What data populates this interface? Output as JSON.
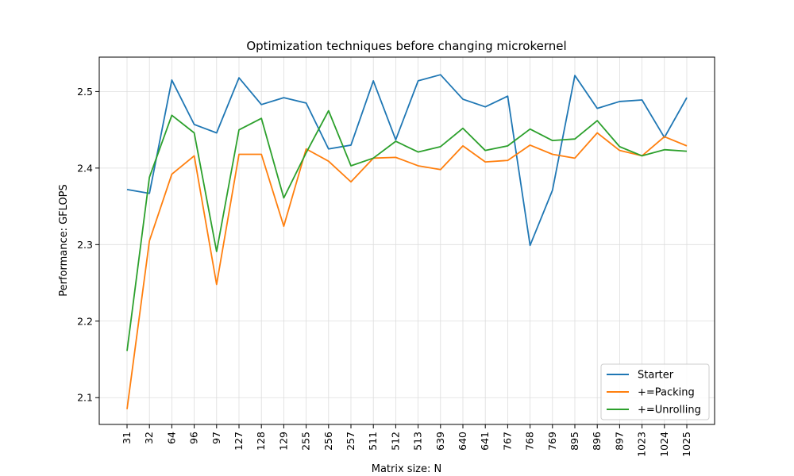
{
  "chart_data": {
    "type": "line",
    "title": "Optimization techniques before changing microkernel",
    "xlabel": "Matrix size: N",
    "ylabel": "Performance: GFLOPS",
    "categories": [
      "31",
      "32",
      "64",
      "96",
      "97",
      "127",
      "128",
      "129",
      "255",
      "256",
      "257",
      "511",
      "512",
      "513",
      "639",
      "640",
      "641",
      "767",
      "768",
      "769",
      "895",
      "896",
      "897",
      "1023",
      "1024",
      "1025"
    ],
    "ylim": [
      2.065,
      2.545
    ],
    "yticks": [
      2.1,
      2.2,
      2.3,
      2.4,
      2.5
    ],
    "ytick_labels": [
      "2.1",
      "2.2",
      "2.3",
      "2.4",
      "2.5"
    ],
    "grid": true,
    "legend_position": "lower-right",
    "series": [
      {
        "name": "Starter",
        "color": "#1f77b4",
        "values": [
          2.372,
          2.367,
          2.515,
          2.457,
          2.446,
          2.518,
          2.483,
          2.492,
          2.485,
          2.425,
          2.43,
          2.514,
          2.437,
          2.514,
          2.522,
          2.49,
          2.48,
          2.494,
          2.299,
          2.371,
          2.521,
          2.478,
          2.487,
          2.489,
          2.44,
          2.492
        ]
      },
      {
        "name": "+=Packing",
        "color": "#ff7f0e",
        "values": [
          2.085,
          2.305,
          2.392,
          2.416,
          2.248,
          2.418,
          2.418,
          2.324,
          2.425,
          2.409,
          2.382,
          2.413,
          2.414,
          2.403,
          2.398,
          2.429,
          2.408,
          2.41,
          2.43,
          2.418,
          2.413,
          2.446,
          2.423,
          2.416,
          2.441,
          2.429
        ]
      },
      {
        "name": "+=Unrolling",
        "color": "#2ca02c",
        "values": [
          2.161,
          2.388,
          2.469,
          2.446,
          2.291,
          2.45,
          2.465,
          2.361,
          2.42,
          2.475,
          2.403,
          2.413,
          2.435,
          2.421,
          2.428,
          2.452,
          2.423,
          2.429,
          2.451,
          2.436,
          2.438,
          2.462,
          2.428,
          2.416,
          2.424,
          2.422
        ]
      }
    ]
  }
}
